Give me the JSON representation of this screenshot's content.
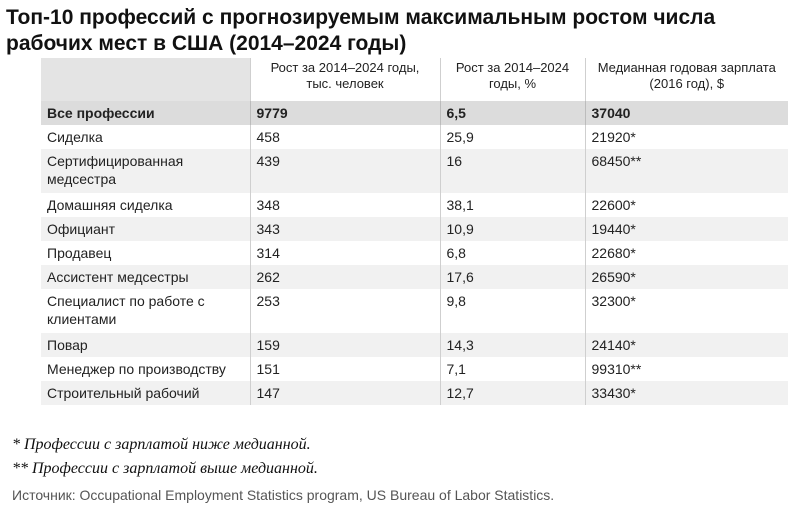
{
  "title": "Топ-10 профессий с прогнозируемым максимальным ростом числа рабочих мест в США (2014–2024 годы)",
  "table": {
    "headers": [
      "",
      "Рост за 2014–2024 годы, тыс. человек",
      "Рост за 2014–2024 годы, %",
      "Медианная годовая зарплата (2016 год), $"
    ],
    "total": [
      "Все профессии",
      "9779",
      "6,5",
      "37040"
    ],
    "rows": [
      [
        "Сиделка",
        "458",
        "25,9",
        "21920*"
      ],
      [
        "Сертифицированная медсестра",
        "439",
        "16",
        "68450**"
      ],
      [
        "Домашняя сиделка",
        "348",
        "38,1",
        "22600*"
      ],
      [
        "Официант",
        "343",
        "10,9",
        "19440*"
      ],
      [
        "Продавец",
        "314",
        "6,8",
        "22680*"
      ],
      [
        "Ассистент медсестры",
        "262",
        "17,6",
        "26590*"
      ],
      [
        "Специалист по работе с клиентами",
        "253",
        "9,8",
        "32300*"
      ],
      [
        "Повар",
        "159",
        "14,3",
        "24140*"
      ],
      [
        "Менеджер по производству",
        "151",
        "7,1",
        "99310**"
      ],
      [
        "Строительный рабочий",
        "147",
        "12,7",
        "33430*"
      ]
    ]
  },
  "footnotes": [
    "* Профессии с зарплатой ниже медианной.",
    "** Профессии с зарплатой выше медианной."
  ],
  "source": "Источник: Occupational Employment Statistics program, US Bureau of Labor Statistics."
}
